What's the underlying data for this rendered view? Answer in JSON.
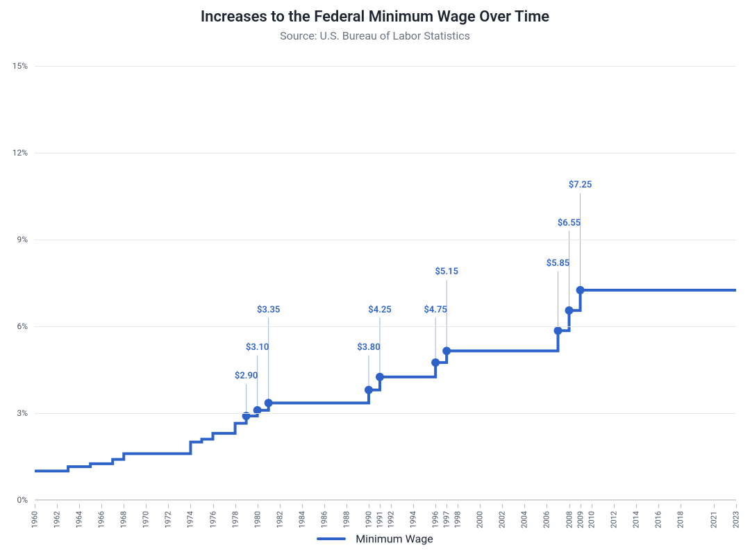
{
  "title": "Increases to the Federal Minimum Wage Over Time",
  "subtitle": "Source: U.S. Bureau of Labor Statistics",
  "chart": {
    "type": "step-line",
    "line_color": "#2d63c8",
    "line_width": 4,
    "marker_color": "#2d63c8",
    "marker_radius": 6,
    "annotation_color": "#2d63c8",
    "callout_color": "#9cb4e0",
    "background_color": "#ffffff",
    "grid_color": "#e5e7eb",
    "axis_font_color": "#4b5563",
    "axis_font_size": 12,
    "title_font_size": 22,
    "subtitle_font_size": 16,
    "x": {
      "min": 1960,
      "max": 2023,
      "ticks": [
        1960,
        1962,
        1964,
        1966,
        1968,
        1970,
        1972,
        1974,
        1976,
        1978,
        1980,
        1982,
        1984,
        1986,
        1988,
        1990,
        1991,
        1992,
        1994,
        1996,
        1997,
        1998,
        2000,
        2002,
        2004,
        2006,
        2008,
        2009,
        2010,
        2012,
        2014,
        2016,
        2018,
        2021,
        2023
      ]
    },
    "y": {
      "min": 0,
      "max": 15,
      "ticks": [
        0,
        3,
        6,
        9,
        12,
        15
      ],
      "suffix": "%"
    },
    "series": [
      {
        "year": 1960,
        "value": 1.0
      },
      {
        "year": 1961,
        "value": 1.0
      },
      {
        "year": 1962,
        "value": 1.0
      },
      {
        "year": 1963,
        "value": 1.15
      },
      {
        "year": 1964,
        "value": 1.15
      },
      {
        "year": 1965,
        "value": 1.25
      },
      {
        "year": 1966,
        "value": 1.25
      },
      {
        "year": 1967,
        "value": 1.4
      },
      {
        "year": 1968,
        "value": 1.6
      },
      {
        "year": 1969,
        "value": 1.6
      },
      {
        "year": 1970,
        "value": 1.6
      },
      {
        "year": 1971,
        "value": 1.6
      },
      {
        "year": 1972,
        "value": 1.6
      },
      {
        "year": 1973,
        "value": 1.6
      },
      {
        "year": 1974,
        "value": 2.0
      },
      {
        "year": 1975,
        "value": 2.1
      },
      {
        "year": 1976,
        "value": 2.3
      },
      {
        "year": 1977,
        "value": 2.3
      },
      {
        "year": 1978,
        "value": 2.65
      },
      {
        "year": 1979,
        "value": 2.9
      },
      {
        "year": 1980,
        "value": 3.1
      },
      {
        "year": 1981,
        "value": 3.35
      },
      {
        "year": 1982,
        "value": 3.35
      },
      {
        "year": 1989,
        "value": 3.35
      },
      {
        "year": 1990,
        "value": 3.8
      },
      {
        "year": 1991,
        "value": 4.25
      },
      {
        "year": 1992,
        "value": 4.25
      },
      {
        "year": 1995,
        "value": 4.25
      },
      {
        "year": 1996,
        "value": 4.75
      },
      {
        "year": 1997,
        "value": 5.15
      },
      {
        "year": 1998,
        "value": 5.15
      },
      {
        "year": 2006,
        "value": 5.15
      },
      {
        "year": 2007,
        "value": 5.85
      },
      {
        "year": 2008,
        "value": 6.55
      },
      {
        "year": 2009,
        "value": 7.25
      },
      {
        "year": 2010,
        "value": 7.25
      },
      {
        "year": 2023,
        "value": 7.25
      }
    ],
    "annotations": [
      {
        "year": 1979,
        "value": 2.9,
        "label": "$2.90",
        "callout_to": 4.0
      },
      {
        "year": 1980,
        "value": 3.1,
        "label": "$3.10",
        "callout_to": 5.0
      },
      {
        "year": 1981,
        "value": 3.35,
        "label": "$3.35",
        "callout_to": 6.3
      },
      {
        "year": 1990,
        "value": 3.8,
        "label": "$3.80",
        "callout_to": 5.0
      },
      {
        "year": 1991,
        "value": 4.25,
        "label": "$4.25",
        "callout_to": 6.3
      },
      {
        "year": 1996,
        "value": 4.75,
        "label": "$4.75",
        "callout_to": 6.3
      },
      {
        "year": 1997,
        "value": 5.15,
        "label": "$5.15",
        "callout_to": 7.6
      },
      {
        "year": 2007,
        "value": 5.85,
        "label": "$5.85",
        "callout_to": 7.9
      },
      {
        "year": 2008,
        "value": 6.55,
        "label": "$6.55",
        "callout_to": 9.3
      },
      {
        "year": 2009,
        "value": 7.25,
        "label": "$7.25",
        "callout_to": 10.6
      }
    ]
  },
  "legend": {
    "label": "Minimum Wage"
  }
}
